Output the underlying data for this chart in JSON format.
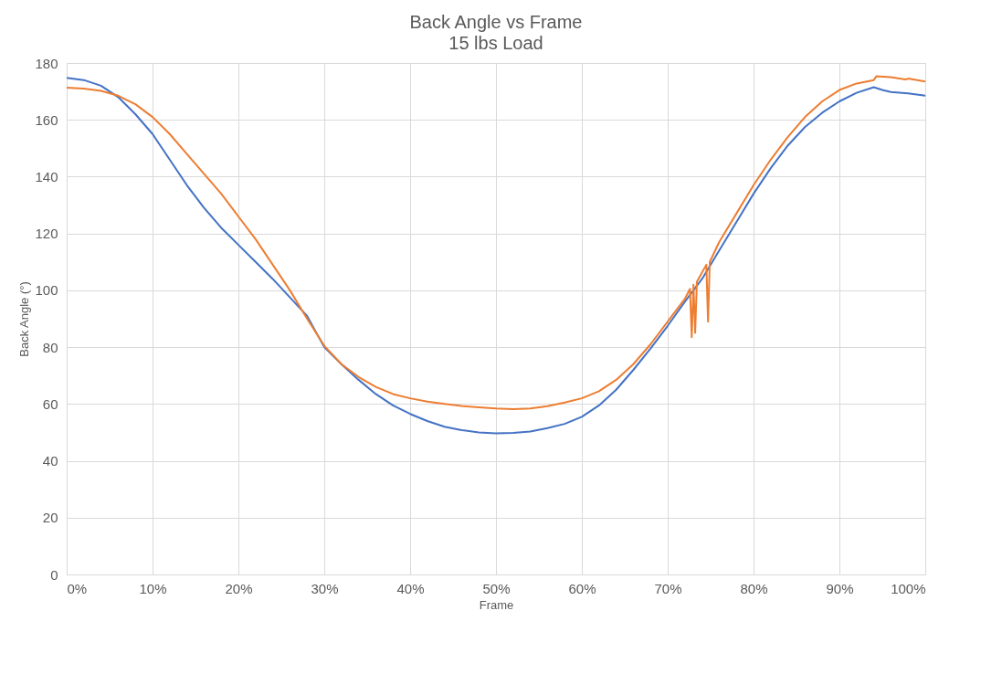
{
  "chart_data": {
    "type": "line",
    "title": "Back Angle vs Frame",
    "subtitle": "15 lbs Load",
    "xlabel": "Frame",
    "ylabel": "Back Angle  (°)",
    "xlim": [
      0,
      100
    ],
    "xticks": [
      {
        "value": 0,
        "label": "0%"
      },
      {
        "value": 10,
        "label": "10%"
      },
      {
        "value": 20,
        "label": "20%"
      },
      {
        "value": 30,
        "label": "30%"
      },
      {
        "value": 40,
        "label": "40%"
      },
      {
        "value": 50,
        "label": "50%"
      },
      {
        "value": 60,
        "label": "60%"
      },
      {
        "value": 70,
        "label": "70%"
      },
      {
        "value": 80,
        "label": "80%"
      },
      {
        "value": 90,
        "label": "90%"
      },
      {
        "value": 100,
        "label": "100%"
      }
    ],
    "ylim": [
      0,
      180
    ],
    "yticks": [
      0,
      20,
      40,
      60,
      80,
      100,
      120,
      140,
      160,
      180
    ],
    "grid": true,
    "series": [
      {
        "color": "#4472c4",
        "x": [
          0,
          2,
          4,
          6,
          8,
          10,
          12,
          14,
          16,
          18,
          20,
          22,
          24,
          26,
          28,
          30,
          32,
          34,
          36,
          38,
          40,
          42,
          44,
          46,
          48,
          50,
          52,
          54,
          56,
          58,
          60,
          62,
          64,
          66,
          68,
          70,
          72,
          74,
          76,
          78,
          80,
          82,
          84,
          86,
          88,
          90,
          92,
          94,
          95,
          96,
          98,
          100
        ],
        "values": [
          174.8,
          174,
          172,
          168,
          162,
          155,
          146,
          137,
          129,
          122,
          116,
          110,
          104,
          97.5,
          91,
          80,
          74,
          68.5,
          63.5,
          59.5,
          56.5,
          54,
          52,
          50.8,
          50,
          49.7,
          49.8,
          50.3,
          51.5,
          53,
          55.5,
          59.5,
          65,
          72,
          79.5,
          87.5,
          96,
          104,
          114,
          124,
          134,
          143,
          151,
          157.5,
          162.5,
          166.5,
          169.5,
          171.5,
          170.5,
          169.8,
          169.3,
          168.5
        ]
      },
      {
        "color": "#ed7d31",
        "x": [
          0,
          2,
          4,
          6,
          8,
          10,
          12,
          14,
          16,
          18,
          20,
          22,
          24,
          26,
          28,
          30,
          32,
          34,
          36,
          38,
          40,
          42,
          44,
          46,
          48,
          50,
          52,
          54,
          56,
          58,
          60,
          62,
          64,
          66,
          68,
          70,
          72,
          72.6,
          72.8,
          73.0,
          73.2,
          73.4,
          74.5,
          74.7,
          74.9,
          76,
          78,
          80,
          82,
          84,
          86,
          88,
          90,
          92,
          94,
          94.3,
          96,
          97.7,
          98,
          100
        ],
        "values": [
          171.3,
          171,
          170.2,
          168.5,
          165.5,
          161,
          155,
          148,
          141,
          134,
          126,
          118,
          109,
          100,
          90,
          80.5,
          74,
          69.5,
          66,
          63.5,
          62,
          60.8,
          60,
          59.3,
          58.8,
          58.4,
          58.2,
          58.4,
          59.2,
          60.5,
          62,
          64.5,
          68.5,
          74,
          81,
          89,
          97,
          100.5,
          83.5,
          102,
          85,
          103,
          109,
          89,
          110,
          117,
          127,
          137,
          146,
          154,
          161,
          166.5,
          170.5,
          172.8,
          174,
          175.3,
          175,
          174.2,
          174.5,
          173.5
        ]
      }
    ]
  }
}
